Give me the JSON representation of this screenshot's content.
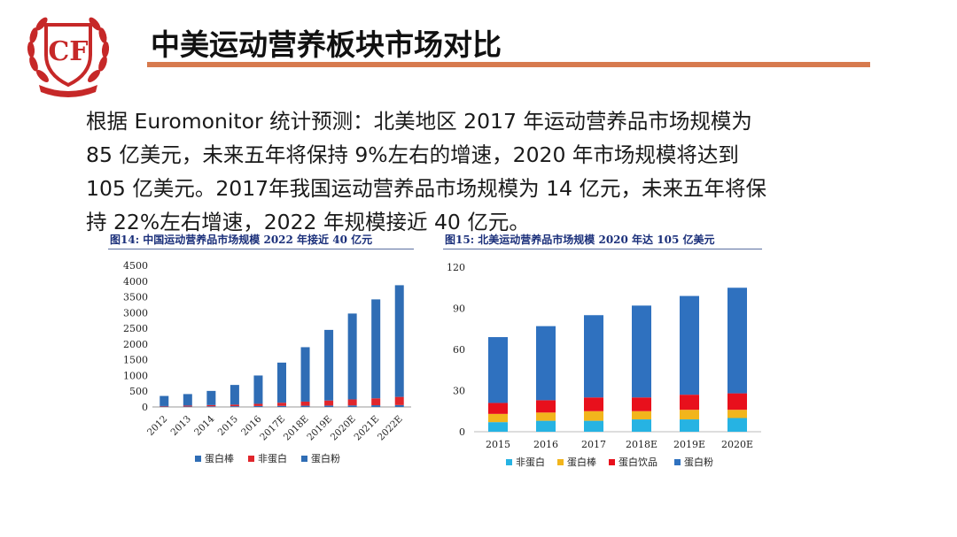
{
  "logo": {
    "text": "CF"
  },
  "title": "中美运动营养板块市场对比",
  "paragraph": [
    "根据 Euromonitor 统计预测：北美地区 2017 年运动营养品市场规模为",
    "85 亿美元，未来五年将保持 9%左右的增速，2020 年市场规模将达到",
    "105 亿美元。2017年我国运动营养品市场规模为 14 亿元，未来五年将保",
    "持 22%左右增速，2022 年规模接近 40 亿元。"
  ],
  "colors": {
    "title_rule": "#d77a4e",
    "logo": "#c62828",
    "caption": "#1a2f7a",
    "chart1": {
      "蛋白棒": "#2f6db5",
      "非蛋白": "#e0262c",
      "蛋白粉": "#2f6db5"
    },
    "chart2": {
      "非蛋白": "#26b3e3",
      "蛋白棒": "#f2b51c",
      "蛋白饮品": "#e8101c",
      "蛋白粉": "#2f71bf"
    }
  },
  "chart_data": [
    {
      "type": "bar",
      "stacked": true,
      "caption": "图14:   中国运动营养品市场规模 2022 年接近 40 亿元",
      "categories": [
        "2012",
        "2013",
        "2014",
        "2015",
        "2016",
        "2017E",
        "2018E",
        "2019E",
        "2020E",
        "2021E",
        "2022E"
      ],
      "series": [
        {
          "name": "蛋白棒",
          "values": [
            15,
            15,
            20,
            25,
            30,
            35,
            40,
            45,
            50,
            55,
            60
          ]
        },
        {
          "name": "非蛋白",
          "values": [
            15,
            30,
            40,
            50,
            70,
            100,
            130,
            160,
            190,
            220,
            260
          ]
        },
        {
          "name": "蛋白粉",
          "values": [
            320,
            365,
            450,
            625,
            900,
            1275,
            1730,
            2245,
            2730,
            3145,
            3550
          ]
        }
      ],
      "ylim": [
        0,
        4500
      ],
      "yticks": [
        "4500",
        "4000",
        "3500",
        "3000",
        "2500",
        "2000",
        "1500",
        "1000",
        "500",
        "0"
      ],
      "legend": [
        "蛋白棒",
        "非蛋白",
        "蛋白粉"
      ],
      "legend_position": "bottom"
    },
    {
      "type": "bar",
      "stacked": true,
      "caption": "图15:   北美运动营养品市场规模 2020 年达 105 亿美元",
      "categories": [
        "2015",
        "2016",
        "2017",
        "2018E",
        "2019E",
        "2020E"
      ],
      "series": [
        {
          "name": "非蛋白",
          "values": [
            7,
            8,
            8,
            9,
            9,
            10
          ]
        },
        {
          "name": "蛋白棒",
          "values": [
            6,
            6,
            7,
            6,
            7,
            6
          ]
        },
        {
          "name": "蛋白饮品",
          "values": [
            8,
            9,
            10,
            10,
            11,
            12
          ]
        },
        {
          "name": "蛋白粉",
          "values": [
            48,
            54,
            60,
            67,
            72,
            77
          ]
        }
      ],
      "ylim": [
        0,
        120
      ],
      "yticks": [
        "120",
        "90",
        "60",
        "30",
        "0"
      ],
      "legend": [
        "非蛋白",
        "蛋白棒",
        "蛋白饮品",
        "蛋白粉"
      ],
      "legend_position": "bottom"
    }
  ]
}
